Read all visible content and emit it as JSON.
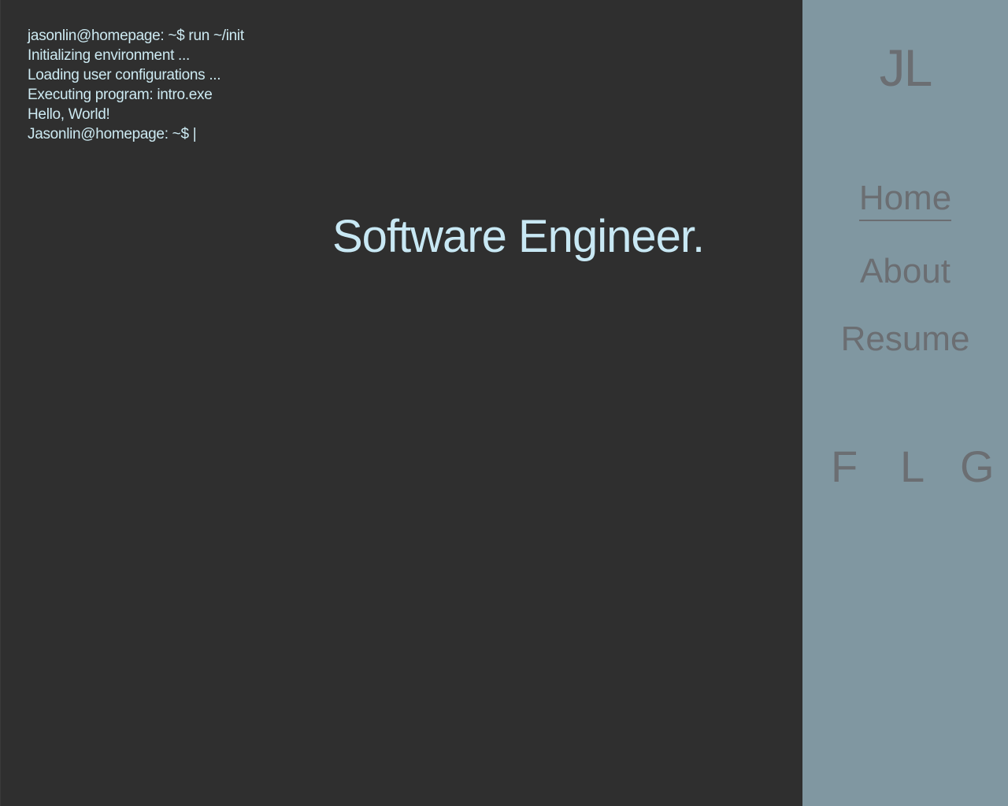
{
  "terminal": {
    "lines": [
      "jasonlin@homepage: ~$ run ~/init",
      "Initializing environment ...",
      "Loading user configurations ...",
      "Executing program: intro.exe",
      "Hello, World!",
      "Jasonlin@homepage: ~$ |"
    ]
  },
  "headline": "Software Engineer.",
  "sidebar": {
    "logo": "JL",
    "nav": [
      {
        "label": "Home",
        "active": true
      },
      {
        "label": "About",
        "active": false
      },
      {
        "label": "Resume",
        "active": false
      }
    ],
    "social": [
      {
        "label": "F",
        "icon": "facebook-icon"
      },
      {
        "label": "L",
        "icon": "linkedin-icon"
      },
      {
        "label": "G",
        "icon": "github-icon"
      }
    ]
  },
  "colors": {
    "background": "#2f2f2f",
    "sidebar": "#8097a1",
    "terminal_text": "#cdeaf2",
    "headline_text": "#c8e8f4",
    "sidebar_text": "#6b6e72"
  }
}
